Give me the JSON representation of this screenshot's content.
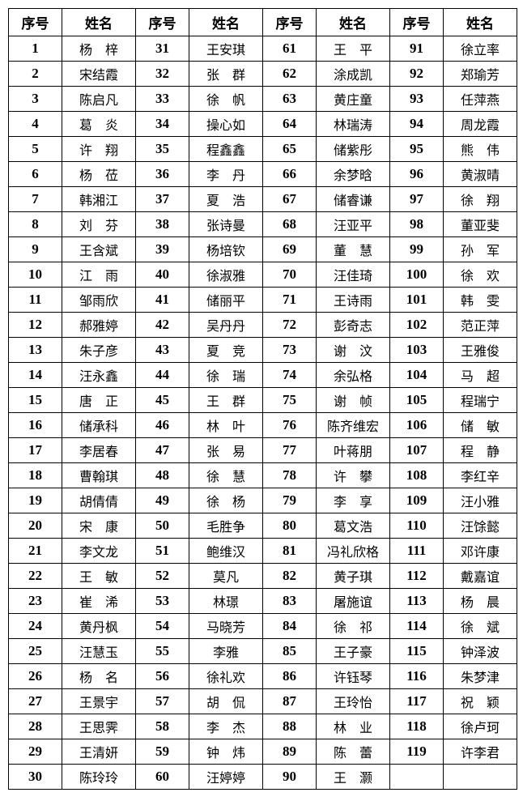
{
  "table": {
    "headers": [
      "序号",
      "姓名",
      "序号",
      "姓名",
      "序号",
      "姓名",
      "序号",
      "姓名"
    ],
    "columns": [
      {
        "entries": [
          {
            "no": "1",
            "name": "杨　梓"
          },
          {
            "no": "2",
            "name": "宋结霞"
          },
          {
            "no": "3",
            "name": "陈启凡"
          },
          {
            "no": "4",
            "name": "葛　炎"
          },
          {
            "no": "5",
            "name": "许　翔"
          },
          {
            "no": "6",
            "name": "杨　莅"
          },
          {
            "no": "7",
            "name": "韩湘江"
          },
          {
            "no": "8",
            "name": "刘　芬"
          },
          {
            "no": "9",
            "name": "王含斌"
          },
          {
            "no": "10",
            "name": "江　雨"
          },
          {
            "no": "11",
            "name": "邹雨欣"
          },
          {
            "no": "12",
            "name": "郝雅婷"
          },
          {
            "no": "13",
            "name": "朱子彦"
          },
          {
            "no": "14",
            "name": "汪永鑫"
          },
          {
            "no": "15",
            "name": "唐　正"
          },
          {
            "no": "16",
            "name": "储承科"
          },
          {
            "no": "17",
            "name": "李居春"
          },
          {
            "no": "18",
            "name": "曹翰琪"
          },
          {
            "no": "19",
            "name": "胡倩倩"
          },
          {
            "no": "20",
            "name": "宋　康"
          },
          {
            "no": "21",
            "name": "李文龙"
          },
          {
            "no": "22",
            "name": "王　敏"
          },
          {
            "no": "23",
            "name": "崔　浠"
          },
          {
            "no": "24",
            "name": "黄丹枫"
          },
          {
            "no": "25",
            "name": "汪慧玉"
          },
          {
            "no": "26",
            "name": "杨　名"
          },
          {
            "no": "27",
            "name": "王景宇"
          },
          {
            "no": "28",
            "name": "王思霁"
          },
          {
            "no": "29",
            "name": "王清妍"
          },
          {
            "no": "30",
            "name": "陈玲玲"
          }
        ]
      },
      {
        "entries": [
          {
            "no": "31",
            "name": "王安琪"
          },
          {
            "no": "32",
            "name": "张　群"
          },
          {
            "no": "33",
            "name": "徐　帆"
          },
          {
            "no": "34",
            "name": "操心如"
          },
          {
            "no": "35",
            "name": "程鑫鑫"
          },
          {
            "no": "36",
            "name": "李　丹"
          },
          {
            "no": "37",
            "name": "夏　浩"
          },
          {
            "no": "38",
            "name": "张诗曼"
          },
          {
            "no": "39",
            "name": "杨培钦"
          },
          {
            "no": "40",
            "name": "徐淑雅"
          },
          {
            "no": "41",
            "name": "储丽平"
          },
          {
            "no": "42",
            "name": "吴丹丹"
          },
          {
            "no": "43",
            "name": "夏　竞"
          },
          {
            "no": "44",
            "name": "徐　瑞"
          },
          {
            "no": "45",
            "name": "王　群"
          },
          {
            "no": "46",
            "name": "林　叶"
          },
          {
            "no": "47",
            "name": "张　易"
          },
          {
            "no": "48",
            "name": "徐　慧"
          },
          {
            "no": "49",
            "name": "徐　杨"
          },
          {
            "no": "50",
            "name": "毛胜争"
          },
          {
            "no": "51",
            "name": "鲍维汉"
          },
          {
            "no": "52",
            "name": "莫凡"
          },
          {
            "no": "53",
            "name": "林璟"
          },
          {
            "no": "54",
            "name": "马晓芳"
          },
          {
            "no": "55",
            "name": "李雅"
          },
          {
            "no": "56",
            "name": "徐礼欢"
          },
          {
            "no": "57",
            "name": "胡　侃"
          },
          {
            "no": "58",
            "name": "李　杰"
          },
          {
            "no": "59",
            "name": "钟　炜"
          },
          {
            "no": "60",
            "name": "汪婷婷"
          }
        ]
      },
      {
        "entries": [
          {
            "no": "61",
            "name": "王　平"
          },
          {
            "no": "62",
            "name": "涂成凯"
          },
          {
            "no": "63",
            "name": "黄庄童"
          },
          {
            "no": "64",
            "name": "林瑞涛"
          },
          {
            "no": "65",
            "name": "储紫彤"
          },
          {
            "no": "66",
            "name": "余梦晗"
          },
          {
            "no": "67",
            "name": "储睿谦"
          },
          {
            "no": "68",
            "name": "汪亚平"
          },
          {
            "no": "69",
            "name": "董　慧"
          },
          {
            "no": "70",
            "name": "汪佳琦"
          },
          {
            "no": "71",
            "name": "王诗雨"
          },
          {
            "no": "72",
            "name": "彭奇志"
          },
          {
            "no": "73",
            "name": "谢　汶"
          },
          {
            "no": "74",
            "name": "余弘格"
          },
          {
            "no": "75",
            "name": "谢　帧"
          },
          {
            "no": "76",
            "name": "陈齐维宏"
          },
          {
            "no": "77",
            "name": "叶蒋朋"
          },
          {
            "no": "78",
            "name": "许　攀"
          },
          {
            "no": "79",
            "name": "李　享"
          },
          {
            "no": "80",
            "name": "葛文浩"
          },
          {
            "no": "81",
            "name": "冯礼欣格"
          },
          {
            "no": "82",
            "name": "黄子琪"
          },
          {
            "no": "83",
            "name": "屠施谊"
          },
          {
            "no": "84",
            "name": "徐　祁"
          },
          {
            "no": "85",
            "name": "王子豪"
          },
          {
            "no": "86",
            "name": "许钰琴"
          },
          {
            "no": "87",
            "name": "王玲怡"
          },
          {
            "no": "88",
            "name": "林　业"
          },
          {
            "no": "89",
            "name": "陈　蕾"
          },
          {
            "no": "90",
            "name": "王　灏"
          }
        ]
      },
      {
        "entries": [
          {
            "no": "91",
            "name": "徐立率"
          },
          {
            "no": "92",
            "name": "郑瑜芳"
          },
          {
            "no": "93",
            "name": "任萍燕"
          },
          {
            "no": "94",
            "name": "周龙霞"
          },
          {
            "no": "95",
            "name": "熊　伟"
          },
          {
            "no": "96",
            "name": "黄淑晴"
          },
          {
            "no": "97",
            "name": "徐　翔"
          },
          {
            "no": "98",
            "name": "董亚斐"
          },
          {
            "no": "99",
            "name": "孙　军"
          },
          {
            "no": "100",
            "name": "徐　欢"
          },
          {
            "no": "101",
            "name": "韩　雯"
          },
          {
            "no": "102",
            "name": "范正萍"
          },
          {
            "no": "103",
            "name": "王雅俊"
          },
          {
            "no": "104",
            "name": "马　超"
          },
          {
            "no": "105",
            "name": "程瑞宁"
          },
          {
            "no": "106",
            "name": "储　敏"
          },
          {
            "no": "107",
            "name": "程　静"
          },
          {
            "no": "108",
            "name": "李红辛"
          },
          {
            "no": "109",
            "name": "汪小雅"
          },
          {
            "no": "110",
            "name": "汪馀懿"
          },
          {
            "no": "111",
            "name": "邓许康"
          },
          {
            "no": "112",
            "name": "戴嘉谊"
          },
          {
            "no": "113",
            "name": "杨　晨"
          },
          {
            "no": "114",
            "name": "徐　斌"
          },
          {
            "no": "115",
            "name": "钟泽波"
          },
          {
            "no": "116",
            "name": "朱梦津"
          },
          {
            "no": "117",
            "name": "祝　颖"
          },
          {
            "no": "118",
            "name": "徐卢珂"
          },
          {
            "no": "119",
            "name": "许李君"
          },
          {
            "no": "",
            "name": ""
          }
        ]
      }
    ]
  }
}
